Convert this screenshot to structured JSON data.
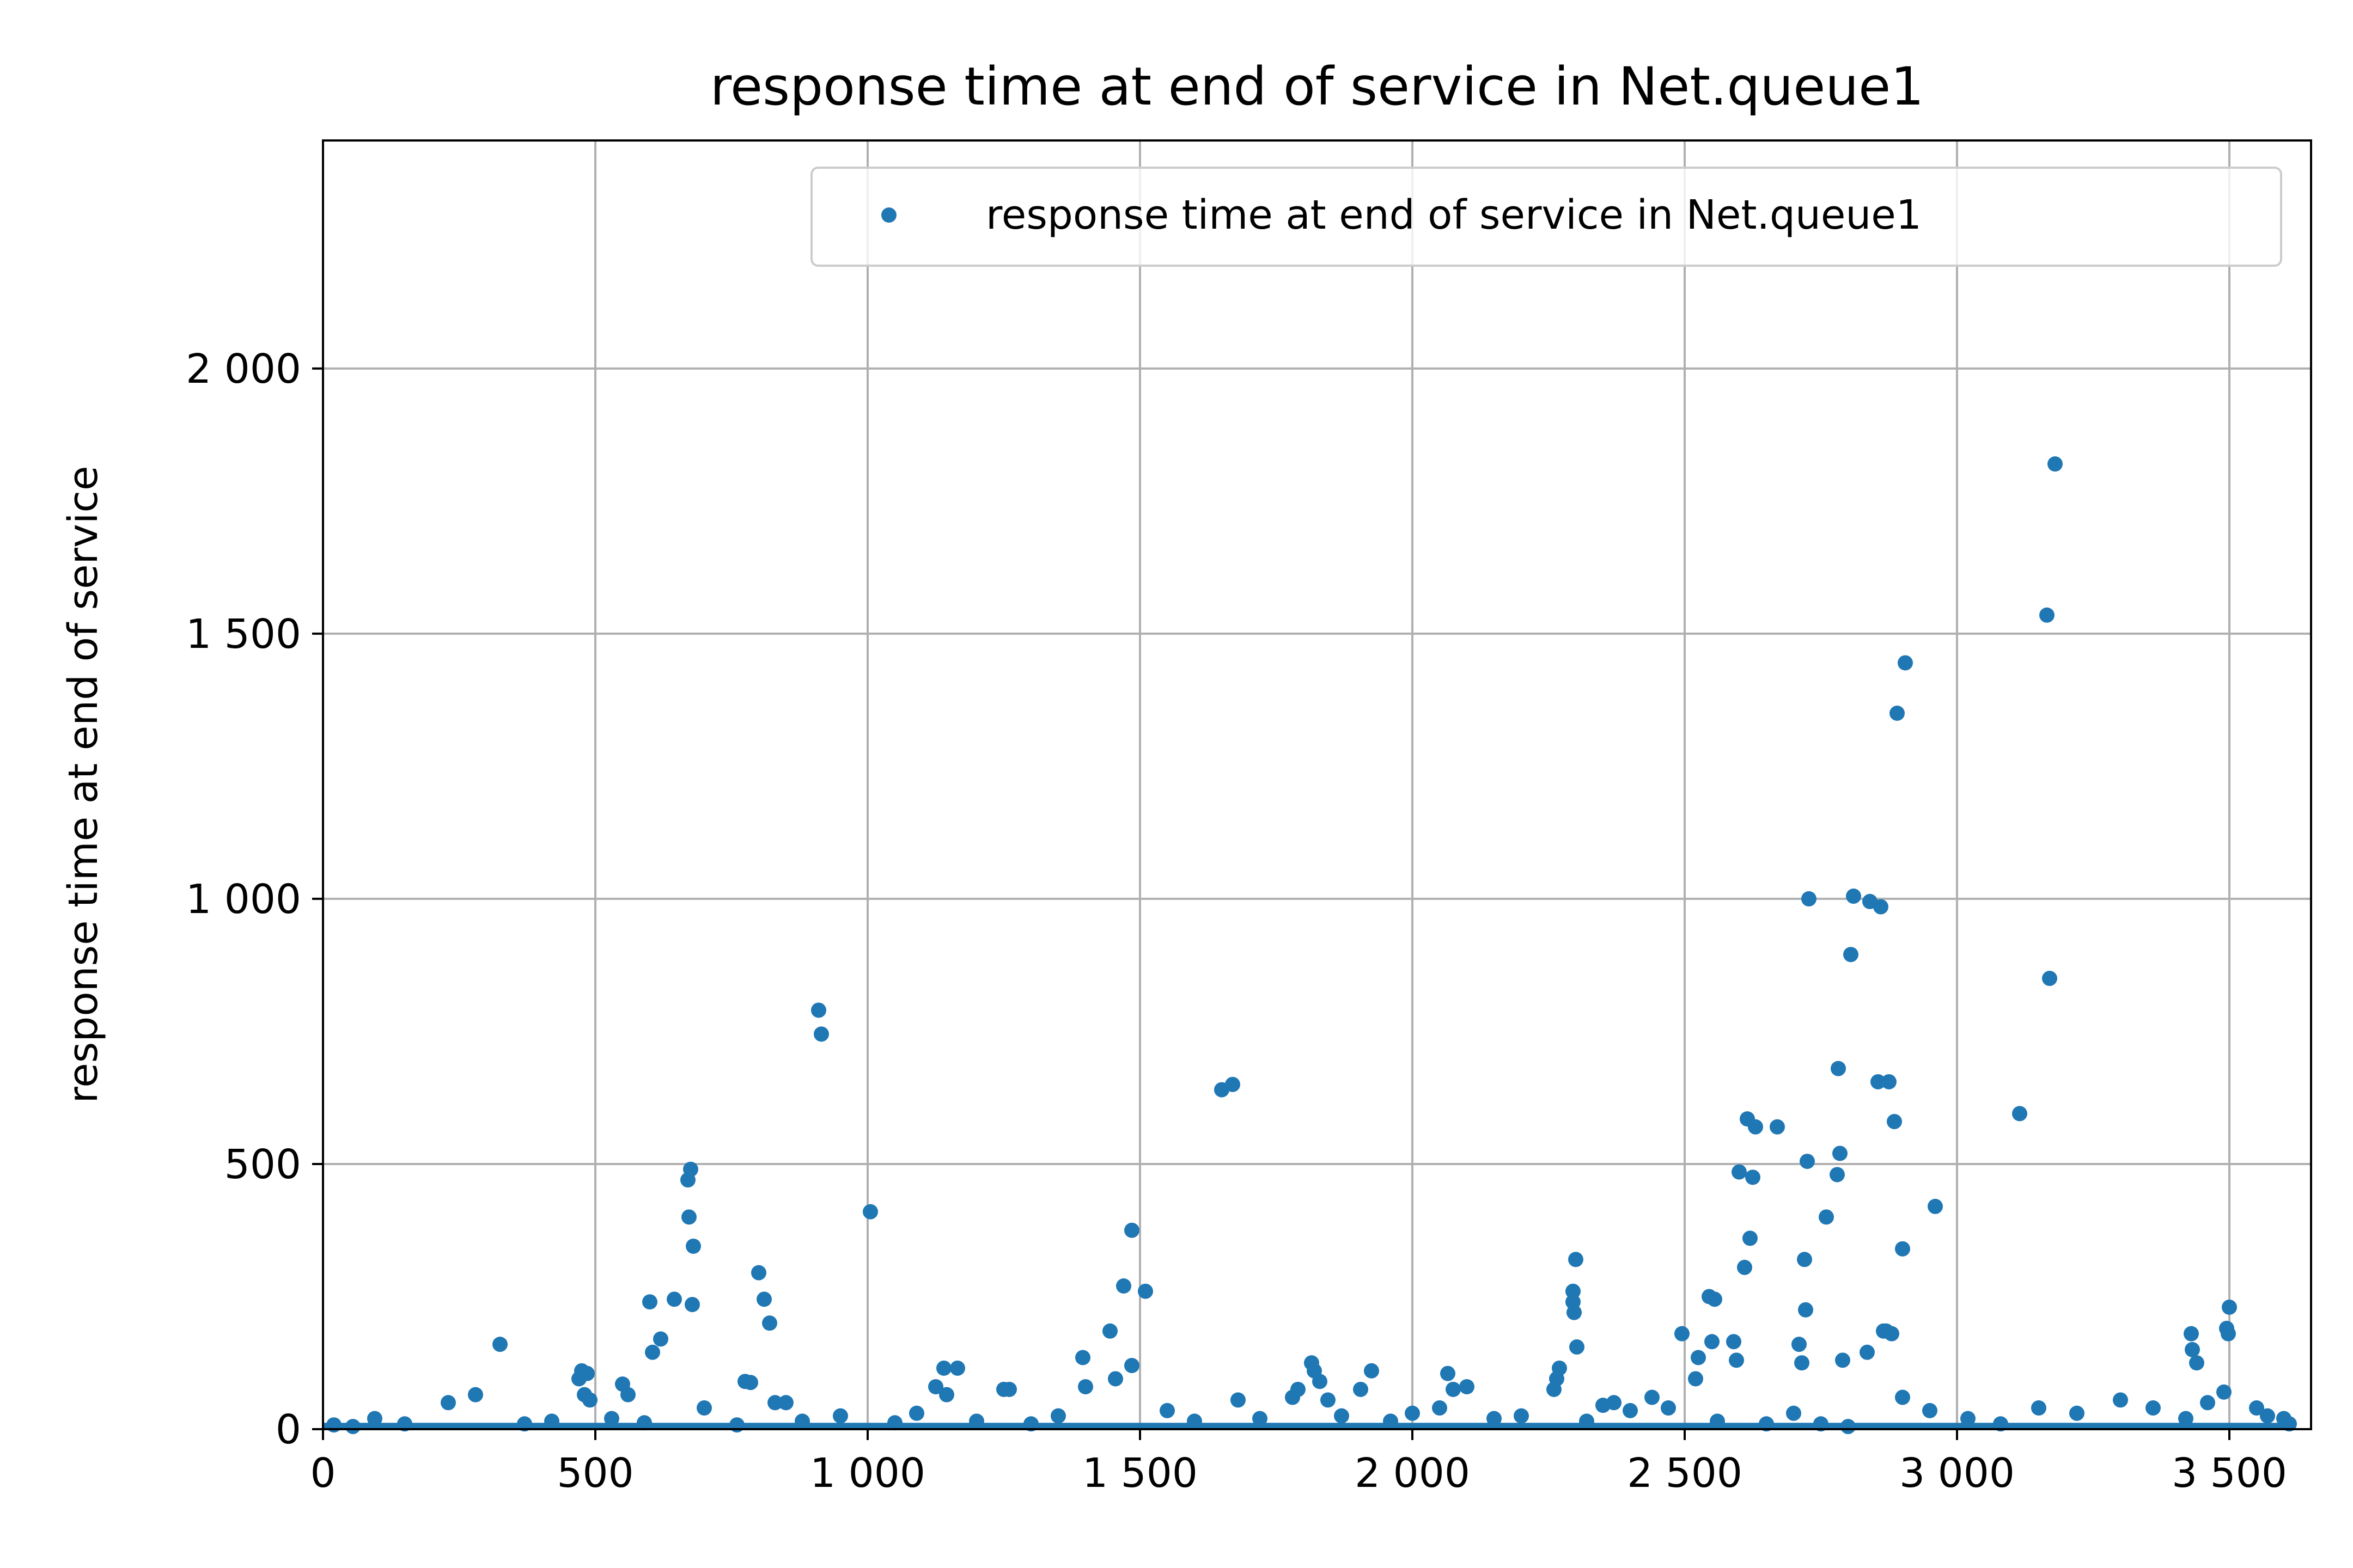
{
  "chart_data": {
    "type": "scatter",
    "title": "response time at end of service in Net.queue1",
    "xlabel": "",
    "ylabel": "response time at end of service",
    "xlim": [
      0,
      3650
    ],
    "ylim": [
      0,
      2430
    ],
    "xticks": [
      0,
      500,
      1000,
      1500,
      2000,
      2500,
      3000,
      3500
    ],
    "xtick_labels": [
      "0",
      "500",
      "1 000",
      "1 500",
      "2 000",
      "2 500",
      "3 000",
      "3 500"
    ],
    "yticks": [
      0,
      500,
      1000,
      1500,
      2000
    ],
    "ytick_labels": [
      "0",
      "500",
      "1 000",
      "1 500",
      "2 000"
    ],
    "grid": true,
    "legend_position": "top-right",
    "colors": {
      "series": "#1f77b4",
      "grid": "#b0b0b0",
      "axis": "#000000",
      "legend_border": "#cccccc"
    },
    "series": [
      {
        "name": "response time at end of service in Net.queue1",
        "marker": "circle",
        "points": [
          [
            325,
            160
          ],
          [
            470,
            95
          ],
          [
            475,
            110
          ],
          [
            480,
            65
          ],
          [
            485,
            105
          ],
          [
            490,
            55
          ],
          [
            550,
            85
          ],
          [
            560,
            65
          ],
          [
            600,
            240
          ],
          [
            605,
            145
          ],
          [
            620,
            170
          ],
          [
            645,
            245
          ],
          [
            670,
            470
          ],
          [
            672,
            400
          ],
          [
            675,
            490
          ],
          [
            678,
            235
          ],
          [
            680,
            345
          ],
          [
            775,
            90
          ],
          [
            785,
            88
          ],
          [
            800,
            295
          ],
          [
            810,
            245
          ],
          [
            820,
            200
          ],
          [
            830,
            50
          ],
          [
            850,
            50
          ],
          [
            910,
            790
          ],
          [
            915,
            745
          ],
          [
            1005,
            410
          ],
          [
            1125,
            80
          ],
          [
            1140,
            115
          ],
          [
            1145,
            65
          ],
          [
            1165,
            115
          ],
          [
            1250,
            75
          ],
          [
            1260,
            75
          ],
          [
            1395,
            135
          ],
          [
            1400,
            80
          ],
          [
            1445,
            185
          ],
          [
            1455,
            95
          ],
          [
            1470,
            270
          ],
          [
            1485,
            120
          ],
          [
            1485,
            375
          ],
          [
            1510,
            260
          ],
          [
            1650,
            640
          ],
          [
            1670,
            650
          ],
          [
            1680,
            55
          ],
          [
            1780,
            60
          ],
          [
            1790,
            75
          ],
          [
            1815,
            125
          ],
          [
            1820,
            110
          ],
          [
            1830,
            90
          ],
          [
            1845,
            55
          ],
          [
            1905,
            75
          ],
          [
            1925,
            110
          ],
          [
            2065,
            105
          ],
          [
            2075,
            75
          ],
          [
            2100,
            80
          ],
          [
            2260,
            75
          ],
          [
            2265,
            95
          ],
          [
            2270,
            115
          ],
          [
            2295,
            240
          ],
          [
            2295,
            260
          ],
          [
            2297,
            220
          ],
          [
            2300,
            320
          ],
          [
            2302,
            155
          ],
          [
            2350,
            45
          ],
          [
            2370,
            50
          ],
          [
            2495,
            180
          ],
          [
            2520,
            95
          ],
          [
            2525,
            135
          ],
          [
            2545,
            250
          ],
          [
            2550,
            165
          ],
          [
            2555,
            245
          ],
          [
            2590,
            165
          ],
          [
            2595,
            130
          ],
          [
            2600,
            485
          ],
          [
            2610,
            305
          ],
          [
            2615,
            585
          ],
          [
            2620,
            360
          ],
          [
            2625,
            475
          ],
          [
            2630,
            570
          ],
          [
            2670,
            570
          ],
          [
            2710,
            160
          ],
          [
            2715,
            125
          ],
          [
            2720,
            320
          ],
          [
            2722,
            225
          ],
          [
            2725,
            505
          ],
          [
            2728,
            1000
          ],
          [
            2760,
            400
          ],
          [
            2780,
            480
          ],
          [
            2782,
            680
          ],
          [
            2785,
            520
          ],
          [
            2790,
            130
          ],
          [
            2805,
            895
          ],
          [
            2810,
            1005
          ],
          [
            2835,
            145
          ],
          [
            2840,
            995
          ],
          [
            2855,
            655
          ],
          [
            2860,
            985
          ],
          [
            2865,
            185
          ],
          [
            2870,
            185
          ],
          [
            2875,
            655
          ],
          [
            2880,
            180
          ],
          [
            2885,
            580
          ],
          [
            2890,
            1350
          ],
          [
            2900,
            340
          ],
          [
            2905,
            1445
          ],
          [
            2960,
            420
          ],
          [
            3115,
            595
          ],
          [
            3165,
            1535
          ],
          [
            3170,
            850
          ],
          [
            3180,
            1820
          ],
          [
            3430,
            180
          ],
          [
            3432,
            150
          ],
          [
            3440,
            125
          ],
          [
            3490,
            70
          ],
          [
            3495,
            190
          ],
          [
            3498,
            180
          ],
          [
            3500,
            230
          ],
          [
            3600,
            20
          ],
          [
            20,
            8
          ],
          [
            55,
            5
          ],
          [
            95,
            20
          ],
          [
            150,
            10
          ],
          [
            230,
            50
          ],
          [
            280,
            65
          ],
          [
            370,
            10
          ],
          [
            420,
            15
          ],
          [
            530,
            20
          ],
          [
            590,
            12
          ],
          [
            700,
            40
          ],
          [
            760,
            8
          ],
          [
            880,
            15
          ],
          [
            950,
            25
          ],
          [
            1050,
            12
          ],
          [
            1090,
            30
          ],
          [
            1200,
            15
          ],
          [
            1300,
            10
          ],
          [
            1350,
            25
          ],
          [
            1550,
            35
          ],
          [
            1600,
            15
          ],
          [
            1720,
            20
          ],
          [
            1870,
            25
          ],
          [
            1960,
            15
          ],
          [
            2000,
            30
          ],
          [
            2050,
            40
          ],
          [
            2150,
            20
          ],
          [
            2200,
            25
          ],
          [
            2320,
            15
          ],
          [
            2400,
            35
          ],
          [
            2440,
            60
          ],
          [
            2470,
            40
          ],
          [
            2560,
            15
          ],
          [
            2650,
            10
          ],
          [
            2700,
            30
          ],
          [
            2750,
            10
          ],
          [
            2800,
            5
          ],
          [
            2900,
            60
          ],
          [
            2950,
            35
          ],
          [
            3020,
            20
          ],
          [
            3080,
            10
          ],
          [
            3150,
            40
          ],
          [
            3220,
            30
          ],
          [
            3300,
            55
          ],
          [
            3360,
            40
          ],
          [
            3420,
            20
          ],
          [
            3460,
            50
          ],
          [
            3550,
            40
          ],
          [
            3570,
            25
          ],
          [
            3610,
            10
          ]
        ]
      }
    ]
  }
}
